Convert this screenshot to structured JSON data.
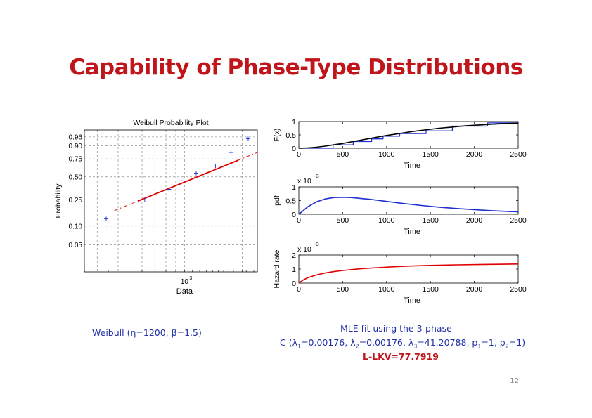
{
  "slide": {
    "title": "Capability of Phase-Type Distributions",
    "page_number": "12"
  },
  "captions": {
    "weibull_prefix": "Weibull (",
    "weibull_eta_symbol": "η",
    "weibull_eta_value": "=1200, ",
    "weibull_beta_symbol": "β",
    "weibull_beta_value": "=1.5)",
    "mle_line1": "MLE fit using the 3-phase",
    "mle_c_prefix": "C (",
    "lambda_symbol": "λ",
    "l1_sub": "1",
    "l1_val": "=0.00176, ",
    "l2_sub": "2",
    "l2_val": "=0.00176, ",
    "l3_sub": "3",
    "l3_val": "=41.20788, p",
    "p1_sub": "1",
    "p1_val": "=1, p",
    "p2_sub": "2",
    "p2_val": "=1)",
    "lkv": "L-LKV=77.7919"
  },
  "chart_data": [
    {
      "type": "scatter",
      "title": "Weibull Probability Plot",
      "xlabel": "Data",
      "ylabel": "Probability",
      "xscale": "log",
      "xtick_labels": [
        "10"
      ],
      "xtick_exponent": "3",
      "ytick_labels": [
        "0.96",
        "0.90",
        "0.75",
        "0.50",
        "0.25",
        "0.10",
        "0.05"
      ],
      "grid": true,
      "series": [
        {
          "marker": "+",
          "color": "#1f2fd0",
          "x": [
            390,
            620,
            830,
            960,
            1150,
            1450,
            1750,
            2150
          ],
          "y": [
            0.13,
            0.25,
            0.35,
            0.45,
            0.55,
            0.65,
            0.83,
            0.95
          ]
        },
        {
          "style": "line",
          "color": "#e00000",
          "x": [
            570,
            1900
          ],
          "y": [
            0.24,
            0.73
          ]
        }
      ]
    },
    {
      "type": "line",
      "ylabel": "F(x)",
      "xlabel": "Time",
      "xlim": [
        0,
        2500
      ],
      "ylim": [
        0,
        1
      ],
      "xtick_labels": [
        "0",
        "500",
        "1000",
        "1500",
        "2000",
        "2500"
      ],
      "ytick_labels": [
        "0",
        "0.5",
        "1"
      ],
      "series": [
        {
          "style": "step",
          "color": "#1f2fd0",
          "x": [
            0,
            390,
            390,
            620,
            620,
            830,
            830,
            960,
            960,
            1150,
            1150,
            1450,
            1450,
            1750,
            1750,
            2150,
            2150,
            2500
          ],
          "y": [
            0,
            0,
            0.13,
            0.13,
            0.25,
            0.25,
            0.35,
            0.35,
            0.45,
            0.45,
            0.55,
            0.55,
            0.65,
            0.65,
            0.83,
            0.83,
            0.95,
            0.95
          ]
        },
        {
          "style": "line",
          "color": "#000000",
          "x": [
            0,
            100,
            200,
            300,
            400,
            500,
            600,
            700,
            800,
            900,
            1000,
            1100,
            1200,
            1300,
            1400,
            1500,
            1600,
            1700,
            1800,
            1900,
            2000,
            2100,
            2200,
            2300,
            2400,
            2500
          ],
          "y": [
            0,
            0.01,
            0.04,
            0.08,
            0.13,
            0.18,
            0.24,
            0.3,
            0.36,
            0.42,
            0.48,
            0.53,
            0.58,
            0.63,
            0.67,
            0.71,
            0.75,
            0.78,
            0.81,
            0.84,
            0.86,
            0.88,
            0.9,
            0.915,
            0.93,
            0.94
          ]
        }
      ]
    },
    {
      "type": "line",
      "ylabel": "pdf",
      "xlabel": "Time",
      "ymultiplier_base": "x 10",
      "ymultiplier_exp": "-3",
      "xlim": [
        0,
        2500
      ],
      "ylim": [
        0,
        1
      ],
      "xtick_labels": [
        "0",
        "500",
        "1000",
        "1500",
        "2000",
        "2500"
      ],
      "ytick_labels": [
        "0",
        "0.5",
        "1"
      ],
      "series": [
        {
          "style": "line",
          "color": "#1f2fd0",
          "x": [
            0,
            100,
            200,
            300,
            400,
            500,
            600,
            700,
            800,
            900,
            1000,
            1200,
            1400,
            1600,
            1800,
            2000,
            2200,
            2400,
            2500
          ],
          "y": [
            0,
            0.27,
            0.45,
            0.56,
            0.61,
            0.62,
            0.61,
            0.58,
            0.55,
            0.51,
            0.47,
            0.39,
            0.32,
            0.26,
            0.21,
            0.17,
            0.13,
            0.1,
            0.09
          ]
        }
      ]
    },
    {
      "type": "line",
      "ylabel": "Hazard rate",
      "xlabel": "Time",
      "ymultiplier_base": "x 10",
      "ymultiplier_exp": "-3",
      "xlim": [
        0,
        2500
      ],
      "ylim": [
        0,
        2
      ],
      "xtick_labels": [
        "0",
        "500",
        "1000",
        "1500",
        "2000",
        "2500"
      ],
      "ytick_labels": [
        "0",
        "1",
        "2"
      ],
      "series": [
        {
          "style": "line",
          "color": "#e00000",
          "x": [
            0,
            50,
            100,
            200,
            300,
            400,
            500,
            700,
            900,
            1100,
            1300,
            1500,
            1800,
            2100,
            2500
          ],
          "y": [
            0,
            0.22,
            0.38,
            0.58,
            0.72,
            0.82,
            0.9,
            1.02,
            1.1,
            1.17,
            1.22,
            1.26,
            1.3,
            1.33,
            1.36
          ]
        }
      ]
    }
  ]
}
